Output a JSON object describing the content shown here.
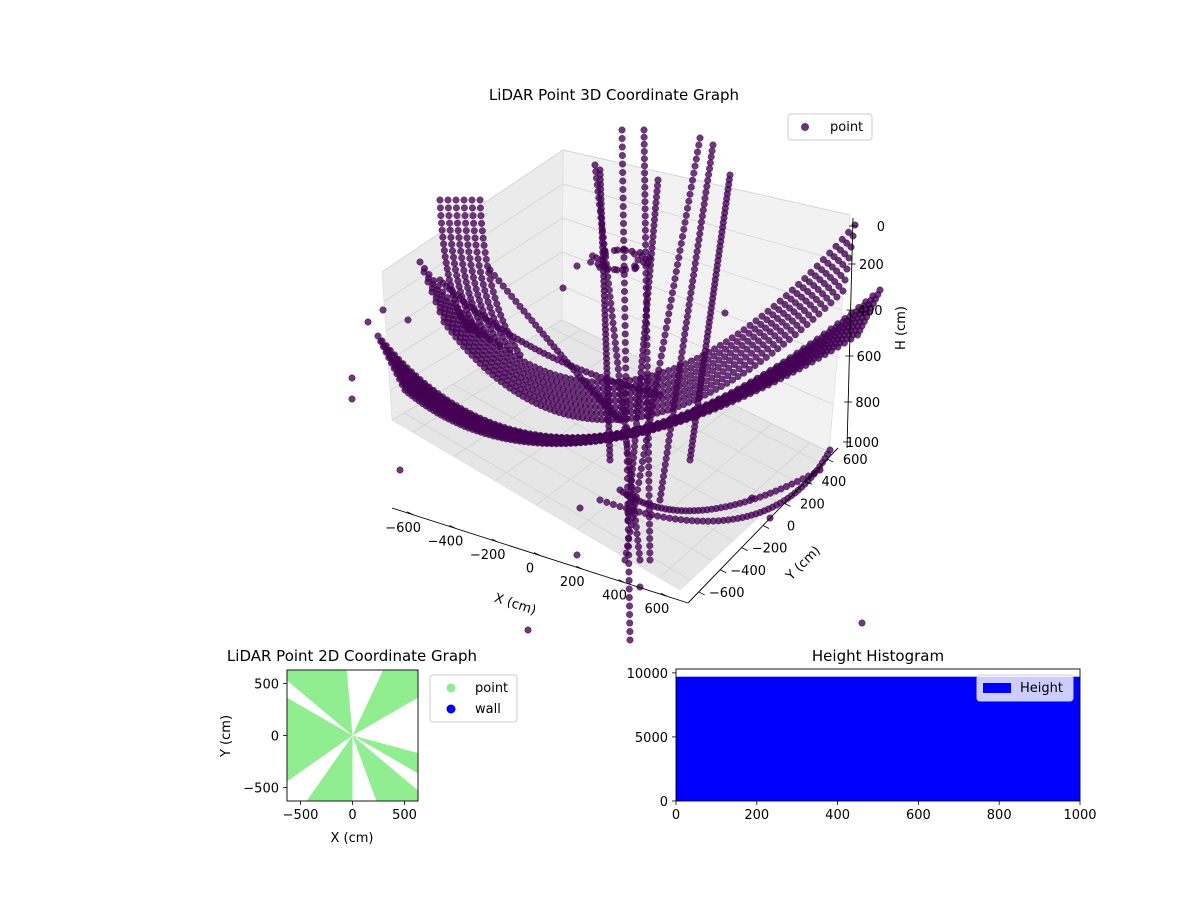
{
  "chart_data": [
    {
      "type": "scatter",
      "projection": "3d",
      "title": "LiDAR Point 3D Coordinate Graph",
      "xlabel": "X (cm)",
      "ylabel": "Y (cm)",
      "zlabel": "H (cm)",
      "xlim": [
        -700,
        700
      ],
      "ylim": [
        -700,
        700
      ],
      "zlim": [
        0,
        1000
      ],
      "z_inverted": true,
      "xticks": [
        "−600",
        "−400",
        "−200",
        "0",
        "200",
        "400",
        "600"
      ],
      "yticks": [
        "−600",
        "−400",
        "−200",
        "0",
        "200",
        "400",
        "600"
      ],
      "zticks": [
        "0",
        "200",
        "400",
        "600",
        "800",
        "1000"
      ],
      "grid": true,
      "legend": {
        "position": "top-right",
        "entries": [
          {
            "name": "point",
            "color": "#440154"
          }
        ]
      },
      "series": [
        {
          "name": "point",
          "color": "#440154"
        }
      ]
    },
    {
      "type": "scatter",
      "title": "LiDAR Point 2D Coordinate Graph",
      "xlabel": "X (cm)",
      "ylabel": "Y (cm)",
      "xlim": [
        -630,
        630
      ],
      "ylim": [
        -630,
        630
      ],
      "xticks": [
        -500,
        0,
        500
      ],
      "yticks": [
        -500,
        0,
        500
      ],
      "legend": {
        "position": "outside-right",
        "entries": [
          {
            "name": "point",
            "color": "#90ee90"
          },
          {
            "name": "wall",
            "color": "#0000ee"
          }
        ]
      },
      "series": [
        {
          "name": "point",
          "color": "#90ee90"
        },
        {
          "name": "wall",
          "color": "#0000ee"
        }
      ]
    },
    {
      "type": "bar",
      "title": "Height Histogram",
      "xlim": [
        0,
        1000
      ],
      "ylim": [
        0,
        10300
      ],
      "xticks": [
        0,
        200,
        400,
        600,
        800,
        1000
      ],
      "yticks": [
        0,
        5000,
        10000
      ],
      "bins": {
        "start": 0,
        "end": 1000,
        "value": 9700
      },
      "legend": {
        "position": "top-right",
        "entries": [
          {
            "name": "Height",
            "color": "#0000ff"
          }
        ]
      },
      "series": [
        {
          "name": "Height",
          "color": "#0000ff"
        }
      ]
    }
  ]
}
